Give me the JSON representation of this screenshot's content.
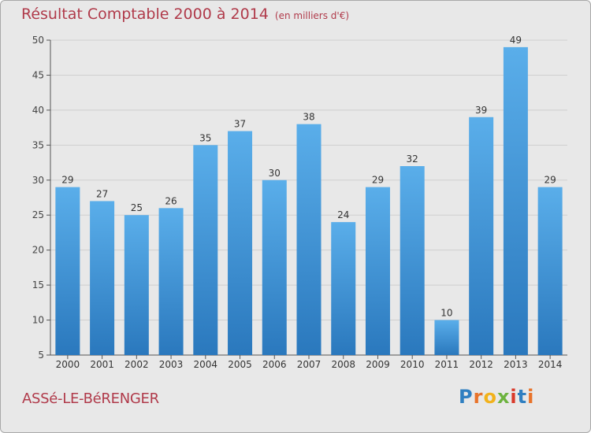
{
  "header": {
    "title": "Résultat Comptable 2000 à 2014",
    "unit": "(en milliers d'€)"
  },
  "footer": {
    "city": "ASSé-LE-BéRENGER",
    "logo": "Proxiti"
  },
  "colors": {
    "bar": "#3a88cf",
    "title": "#b03a4a",
    "grid": "#cfcfcf",
    "axis": "#555555"
  },
  "chart_data": {
    "type": "bar",
    "title": "Résultat Comptable 2000 à 2014",
    "subtitle": "(en milliers d'€)",
    "categories": [
      "2000",
      "2001",
      "2002",
      "2003",
      "2004",
      "2005",
      "2006",
      "2007",
      "2008",
      "2009",
      "2010",
      "2011",
      "2012",
      "2013",
      "2014"
    ],
    "values": [
      29,
      27,
      25,
      26,
      35,
      37,
      30,
      38,
      24,
      29,
      32,
      10,
      39,
      49,
      29
    ],
    "ylim": [
      5,
      50
    ],
    "yticks": [
      5,
      10,
      15,
      20,
      25,
      30,
      35,
      40,
      45,
      50
    ],
    "grid": true,
    "xlabel": "",
    "ylabel": ""
  }
}
